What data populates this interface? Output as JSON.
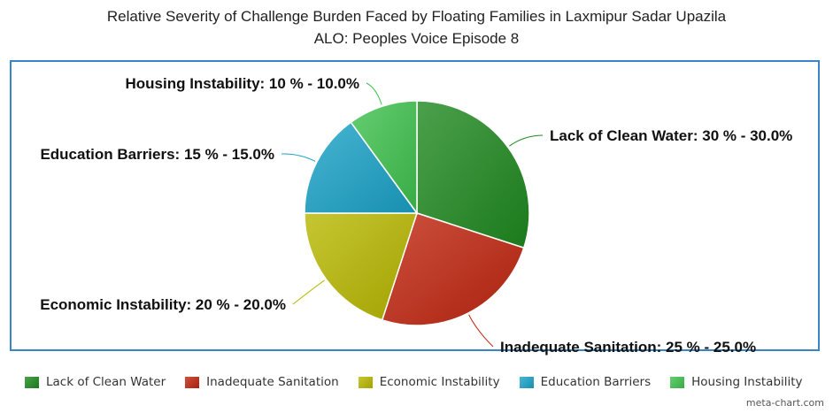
{
  "chart_data": {
    "type": "pie",
    "title": "Relative Severity of Challenge Burden Faced by Floating Families in Laxmipur Sadar Upazila",
    "subtitle": "ALO: Peoples Voice Episode 8",
    "slices": [
      {
        "name": "Lack of Clean Water",
        "value": 30,
        "label": "Lack of Clean Water: 30 % - 30.0%",
        "color": "#1f8a1f"
      },
      {
        "name": "Inadequate Sanitation",
        "value": 25,
        "label": "Inadequate Sanitation: 25 % - 25.0%",
        "color": "#c0260f"
      },
      {
        "name": "Economic Instability",
        "value": 20,
        "label": "Economic Instability: 20 % - 20.0%",
        "color": "#b8b800"
      },
      {
        "name": "Education Barriers",
        "value": 15,
        "label": "Education Barriers: 15 % - 15.0%",
        "color": "#1aa3c8"
      },
      {
        "name": "Housing Instability",
        "value": 10,
        "label": "Housing Instability: 10 % - 10.0%",
        "color": "#3ec24e"
      }
    ],
    "legend_position": "bottom"
  },
  "watermark": "meta-chart.com"
}
